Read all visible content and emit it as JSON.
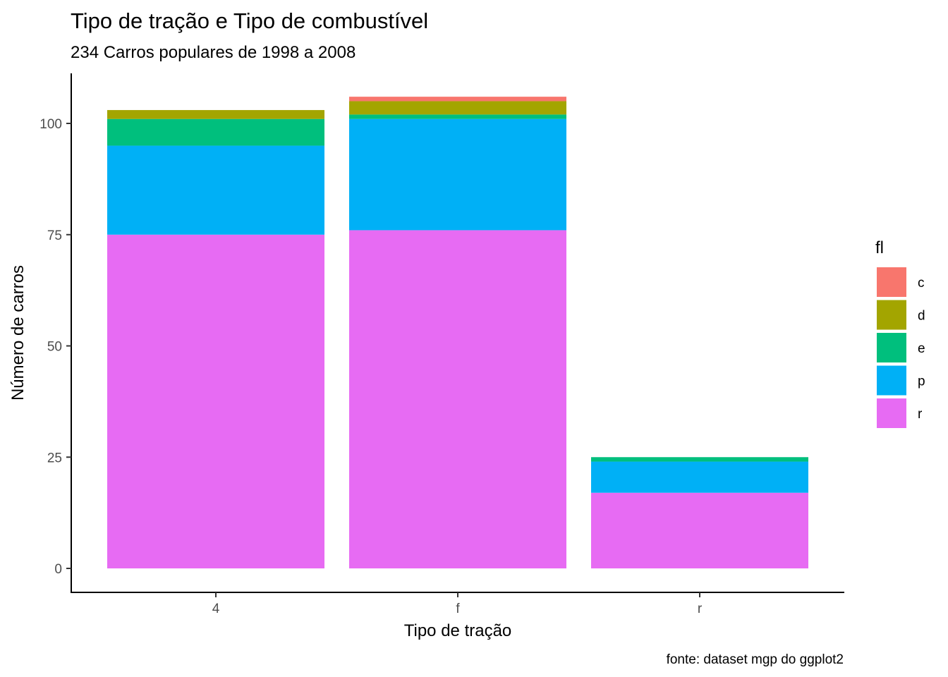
{
  "chart_data": {
    "type": "bar",
    "stacked": true,
    "title": "Tipo de tração e Tipo de combustível",
    "subtitle": "234 Carros populares de 1998 a 2008",
    "xlabel": "Tipo de tração",
    "ylabel": "Número de carros",
    "caption": "fonte: dataset mgp do ggplot2",
    "categories": [
      "4",
      "f",
      "r"
    ],
    "ylim": [
      0,
      110
    ],
    "yticks": [
      0,
      25,
      50,
      75,
      100
    ],
    "grid": false,
    "legend": {
      "title": "fl",
      "position": "right"
    },
    "series": [
      {
        "name": "c",
        "color": "#F8766D",
        "values": [
          0,
          1,
          0
        ]
      },
      {
        "name": "d",
        "color": "#A3A500",
        "values": [
          2,
          3,
          0
        ]
      },
      {
        "name": "e",
        "color": "#00BF7D",
        "values": [
          6,
          1,
          1
        ]
      },
      {
        "name": "p",
        "color": "#00B0F6",
        "values": [
          20,
          25,
          7
        ]
      },
      {
        "name": "r",
        "color": "#E76BF3",
        "values": [
          75,
          76,
          17
        ]
      }
    ]
  }
}
